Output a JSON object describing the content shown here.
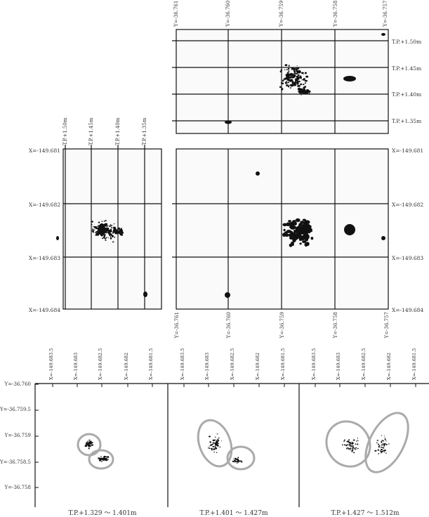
{
  "plan": {
    "x_ticks": [
      "X=-149.681",
      "X=-149.682",
      "X=-149.683",
      "X=-149.684"
    ],
    "y_ticks": [
      "Y=-36.761",
      "Y=-36.760",
      "Y=-36.759",
      "Y=-36.758",
      "Y=-36.757"
    ]
  },
  "elevation_ticks": [
    "T.P.+1.50m",
    "T.P.+1.45m",
    "T.P.+1.40m",
    "T.P.+1.35m"
  ],
  "bottom": {
    "x_ticks": [
      "X=-149.683.5",
      "X=-149.683",
      "X=-149.682.5",
      "X=-149.682",
      "X=-149.681.5"
    ],
    "y_ticks": [
      "Y=-36.760",
      "Y=-36.759.5",
      "Y=-36.759",
      "Y=-36.758.5",
      "Y=-36.758"
    ],
    "captions": [
      "T.P.+1.329 ～ 1.401m",
      "T.P.+1.401 ～ 1.427m",
      "T.P.+1.427 ～ 1.512m"
    ]
  }
}
